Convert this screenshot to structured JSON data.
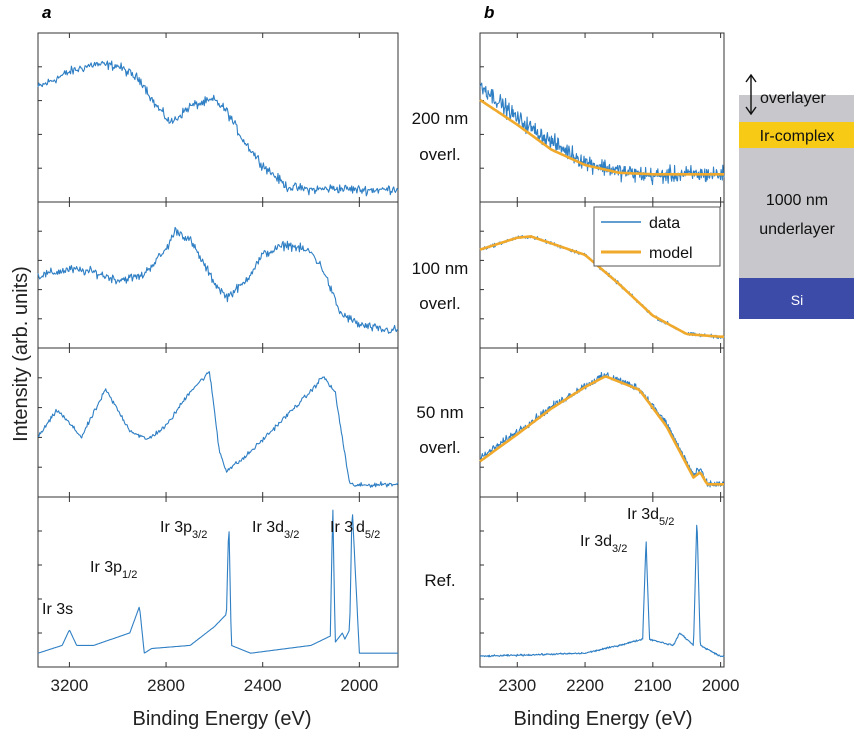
{
  "figure": {
    "panel_a_letter": "a",
    "panel_b_letter": "b",
    "ylabel": "Intensity (arb. units)",
    "xlabel_a": "Binding Energy (eV)",
    "xlabel_b": "Binding Energy (eV)",
    "conditions": [
      {
        "line1": "200 nm",
        "line2": "overl."
      },
      {
        "line1": "100 nm",
        "line2": "overl."
      },
      {
        "line1": "50 nm",
        "line2": "overl."
      },
      {
        "line1": "Ref.",
        "line2": ""
      }
    ],
    "peak_labels": [
      {
        "main": "Ir 3s",
        "sub": ""
      },
      {
        "main": "Ir 3p",
        "sub": "1/2"
      },
      {
        "main": "Ir 3p",
        "sub": "3/2"
      },
      {
        "main": "Ir 3d",
        "sub": "3/2"
      },
      {
        "main": "Ir 3",
        "sub": ""
      },
      {
        "main": "d",
        "sub": "5/2"
      }
    ],
    "peak_labels_b": [
      {
        "main": "Ir 3d",
        "sub": "3/2"
      },
      {
        "main": "Ir 3d",
        "sub": "5/2"
      }
    ],
    "legend": {
      "data": "data",
      "model": "model"
    },
    "colors": {
      "data": "#2f7fc4",
      "model": "#f0a92a",
      "overlayer": "#c8c8cc",
      "ir_complex": "#f7cb15",
      "si": "#3c4ba8"
    },
    "layers": {
      "overlayer": "overlayer",
      "ir_complex": "Ir-complex",
      "underlayer_line1": "1000 nm",
      "underlayer_line2": "underlayer",
      "si": "Si"
    }
  },
  "chart_data": [
    {
      "type": "line",
      "panel": "a",
      "xlabel": "Binding Energy (eV)",
      "ylabel": "Intensity (arb. units)",
      "xlim": [
        3330,
        1840
      ],
      "x_reversed": true,
      "xticks": [
        3200,
        2800,
        2400,
        2000
      ],
      "subplots": [
        {
          "condition": "200 nm overl.",
          "series": [
            {
              "x": [
                3330,
                3200,
                3100,
                3000,
                2900,
                2850,
                2780,
                2700,
                2600,
                2550,
                2480,
                2400,
                2300,
                2200,
                2100,
                2000,
                1900,
                1840
              ],
              "y": [
                0.7,
                0.8,
                0.85,
                0.84,
                0.74,
                0.6,
                0.47,
                0.58,
                0.62,
                0.55,
                0.36,
                0.2,
                0.06,
                0.04,
                0.05,
                0.04,
                0.04,
                0.05
              ]
            }
          ]
        },
        {
          "condition": "100 nm overl.",
          "series": [
            {
              "x": [
                3330,
                3200,
                3100,
                3000,
                2900,
                2800,
                2760,
                2700,
                2600,
                2550,
                2480,
                2400,
                2300,
                2200,
                2150,
                2080,
                2000,
                1900,
                1840
              ],
              "y": [
                0.5,
                0.55,
                0.53,
                0.47,
                0.5,
                0.7,
                0.85,
                0.77,
                0.45,
                0.34,
                0.44,
                0.66,
                0.74,
                0.68,
                0.55,
                0.22,
                0.13,
                0.09,
                0.09
              ]
            }
          ]
        },
        {
          "condition": "50 nm overl.",
          "series": [
            {
              "x": [
                3330,
                3250,
                3200,
                3150,
                3050,
                2950,
                2880,
                2800,
                2700,
                2620,
                2600,
                2580,
                2550,
                2480,
                2400,
                2300,
                2200,
                2150,
                2100,
                2080,
                2040,
                2000,
                1900,
                1840
              ],
              "y": [
                0.4,
                0.6,
                0.5,
                0.4,
                0.75,
                0.45,
                0.38,
                0.48,
                0.74,
                0.88,
                0.6,
                0.3,
                0.15,
                0.24,
                0.38,
                0.56,
                0.74,
                0.85,
                0.73,
                0.5,
                0.05,
                0.04,
                0.05,
                0.05
              ]
            }
          ]
        },
        {
          "condition": "Ref.",
          "peaks": [
            "Ir 3s",
            "Ir 3p1/2",
            "Ir 3p3/2",
            "Ir 3d3/2",
            "Ir 3d5/2"
          ],
          "series": [
            {
              "x": [
                3330,
                3230,
                3200,
                3170,
                3100,
                2950,
                2910,
                2890,
                2860,
                2700,
                2600,
                2550,
                2540,
                2530,
                2450,
                2200,
                2120,
                2110,
                2100,
                2070,
                2060,
                2040,
                2030,
                2000,
                1840
              ],
              "y": [
                0.05,
                0.1,
                0.2,
                0.1,
                0.1,
                0.18,
                0.35,
                0.05,
                0.08,
                0.1,
                0.22,
                0.3,
                0.92,
                0.1,
                0.05,
                0.1,
                0.16,
                1.0,
                0.12,
                0.18,
                0.14,
                0.2,
                1.0,
                0.05,
                0.05
              ]
            }
          ]
        }
      ]
    },
    {
      "type": "line",
      "panel": "b",
      "xlabel": "Binding Energy (eV)",
      "xlim": [
        2355,
        1995
      ],
      "x_reversed": true,
      "xticks": [
        2300,
        2200,
        2100,
        2000
      ],
      "legend": [
        "data",
        "model"
      ],
      "legend_position": "top-right",
      "subplots": [
        {
          "condition": "200 nm overl.",
          "series": [
            {
              "name": "data",
              "x": [
                2355,
                2300,
                2250,
                2200,
                2150,
                2100,
                2050,
                2000
              ],
              "y": [
                0.72,
                0.5,
                0.35,
                0.22,
                0.16,
                0.13,
                0.14,
                0.14
              ]
            },
            {
              "name": "model",
              "x": [
                2355,
                2300,
                2250,
                2200,
                2150,
                2100,
                2050,
                2000
              ],
              "y": [
                0.62,
                0.46,
                0.3,
                0.2,
                0.15,
                0.14,
                0.14,
                0.14
              ]
            }
          ]
        },
        {
          "condition": "100 nm overl.",
          "series": [
            {
              "name": "data",
              "x": [
                2355,
                2300,
                2280,
                2200,
                2150,
                2100,
                2050,
                2000
              ],
              "y": [
                0.7,
                0.79,
                0.8,
                0.66,
                0.44,
                0.2,
                0.06,
                0.04
              ]
            },
            {
              "name": "model",
              "x": [
                2355,
                2300,
                2280,
                2200,
                2150,
                2100,
                2050,
                2000
              ],
              "y": [
                0.7,
                0.79,
                0.8,
                0.66,
                0.44,
                0.2,
                0.06,
                0.04
              ]
            }
          ]
        },
        {
          "condition": "50 nm overl.",
          "series": [
            {
              "name": "data",
              "x": [
                2355,
                2300,
                2250,
                2200,
                2170,
                2120,
                2080,
                2040,
                2030,
                2020,
                2000
              ],
              "y": [
                0.24,
                0.44,
                0.62,
                0.78,
                0.86,
                0.76,
                0.5,
                0.12,
                0.16,
                0.05,
                0.05
              ]
            },
            {
              "name": "model",
              "x": [
                2355,
                2300,
                2250,
                2200,
                2170,
                2120,
                2080,
                2040,
                2030,
                2020,
                2000
              ],
              "y": [
                0.22,
                0.42,
                0.61,
                0.77,
                0.85,
                0.75,
                0.48,
                0.1,
                0.14,
                0.05,
                0.05
              ]
            }
          ]
        },
        {
          "condition": "Ref.",
          "peaks": [
            "Ir 3d3/2",
            "Ir 3d5/2"
          ],
          "series": [
            {
              "name": "data",
              "x": [
                2355,
                2200,
                2150,
                2115,
                2110,
                2105,
                2070,
                2060,
                2040,
                2035,
                2030,
                2000
              ],
              "y": [
                0.03,
                0.05,
                0.1,
                0.14,
                0.78,
                0.14,
                0.1,
                0.18,
                0.1,
                0.92,
                0.1,
                0.03
              ]
            }
          ]
        }
      ]
    }
  ]
}
